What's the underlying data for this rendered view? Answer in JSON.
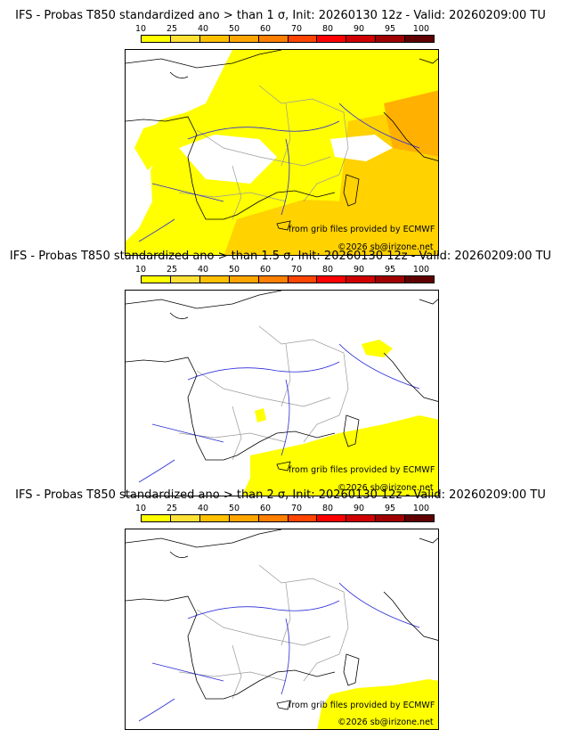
{
  "colorbar": {
    "ticks": [
      "10",
      "25",
      "40",
      "50",
      "60",
      "70",
      "80",
      "90",
      "95",
      "100"
    ],
    "colors": [
      "#ffff00",
      "#ffe135",
      "#ffc000",
      "#ffa500",
      "#ff7f00",
      "#ff4500",
      "#ff0000",
      "#d00000",
      "#a00000",
      "#600000"
    ]
  },
  "panels": [
    {
      "title": "IFS - Probas T850  standardized ano > than 1 σ, Init: 20260130 12z - Valid: 20260209:00 TU",
      "source": "from grib files provided by ECMWF",
      "copyright": "©2026 sb@irizone.net"
    },
    {
      "title": "IFS - Probas T850  standardized ano > than 1.5 σ, Init: 20260130 12z - Valid: 20260209:00 TU",
      "source": "from grib files provided by ECMWF",
      "copyright": "©2026 sb@irizone.net"
    },
    {
      "title": "IFS - Probas T850  standardized ano > than 2 σ, Init: 20260130 12z - Valid: 20260209:00 TU",
      "source": "from grib files provided by ECMWF",
      "copyright": "©2026 sb@irizone.net"
    }
  ],
  "colors": {
    "coast": "#000000",
    "rivers": "#2a2ad8",
    "borders": "#9a9a9a",
    "prob_low": "#ffff00",
    "prob_mid": "#ffd200",
    "prob_high": "#ffb000"
  }
}
